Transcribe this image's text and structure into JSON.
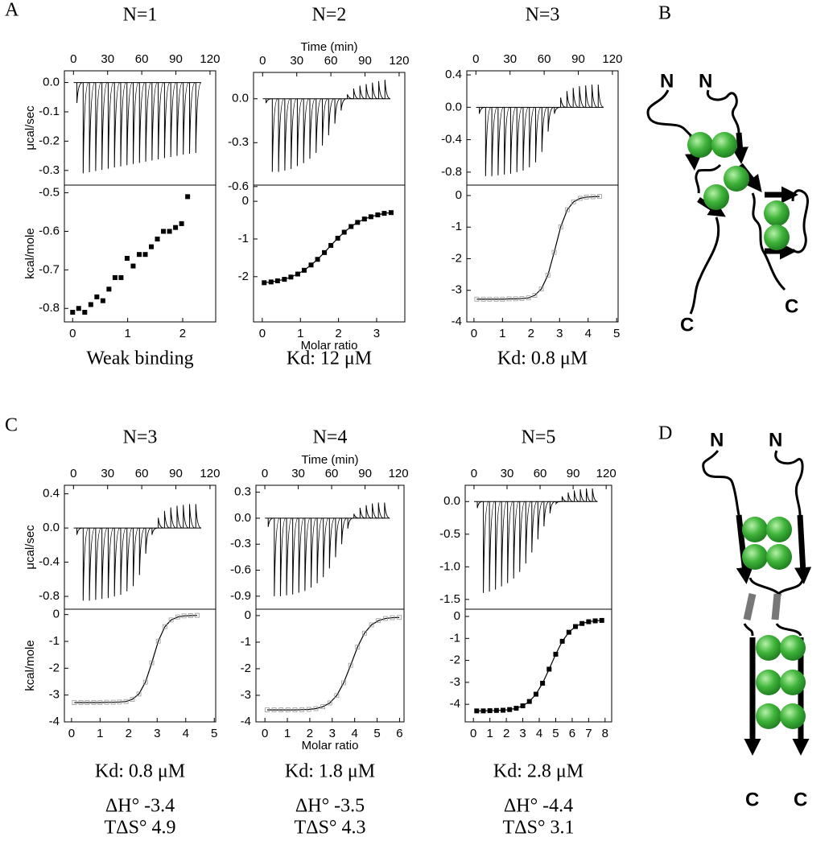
{
  "panel_labels": [
    "A",
    "B",
    "C",
    "D"
  ],
  "diagrams": [
    {
      "labels": [
        "N",
        "N",
        "C",
        "C"
      ]
    },
    {
      "labels": [
        "N",
        "N",
        "C",
        "C"
      ]
    }
  ],
  "chart_data": [
    {
      "type": "thermogram",
      "title": "N=1",
      "ylabel": "μcal/sec",
      "xlim": [
        -8,
        125
      ],
      "xticks": [
        0,
        30,
        60,
        90,
        120
      ],
      "ylim": [
        -0.35,
        0.04
      ],
      "yticks": [
        {
          "value": 0,
          "label": "0.0"
        },
        -0.1,
        -0.2,
        -0.3
      ],
      "color": "#000000",
      "x": [
        3,
        8.5,
        14,
        19.5,
        25,
        30.5,
        36,
        41.5,
        47,
        52.5,
        58,
        63.5,
        69,
        74.5,
        80,
        85.5,
        91,
        96.5,
        102,
        107.5
      ],
      "values": [
        -0.07,
        -0.31,
        -0.306,
        -0.302,
        -0.298,
        -0.294,
        -0.29,
        -0.286,
        -0.282,
        -0.278,
        -0.274,
        -0.27,
        -0.266,
        -0.262,
        -0.258,
        -0.254,
        -0.25,
        -0.246,
        -0.243,
        -0.24
      ]
    },
    {
      "type": "isotherm",
      "ylabel": "kcal/mole",
      "xlim": [
        -0.15,
        2.6
      ],
      "xticks": [
        0,
        1,
        2
      ],
      "ylim": [
        -0.835,
        -0.48
      ],
      "yticks": [
        -0.5,
        -0.6,
        -0.7,
        -0.8
      ],
      "marker": "square",
      "connect": false,
      "color": "#000000",
      "line_color": "#000000",
      "x": [
        0,
        0.11,
        0.22,
        0.33,
        0.44,
        0.55,
        0.66,
        0.77,
        0.88,
        0.99,
        1.1,
        1.21,
        1.32,
        1.43,
        1.54,
        1.65,
        1.76,
        1.87,
        1.98,
        2.09
      ],
      "values": [
        -0.81,
        -0.8,
        -0.81,
        -0.79,
        -0.77,
        -0.78,
        -0.75,
        -0.72,
        -0.72,
        -0.67,
        -0.69,
        -0.66,
        -0.66,
        -0.64,
        -0.62,
        -0.6,
        -0.6,
        -0.59,
        -0.58,
        -0.51
      ],
      "annotations": [
        "Weak binding"
      ]
    },
    {
      "type": "thermogram",
      "title": "N=2",
      "xlabel": "Time (min)",
      "xlim": [
        -8,
        125
      ],
      "xticks": [
        0,
        30,
        60,
        90,
        120
      ],
      "ylim": [
        -0.59,
        0.18
      ],
      "yticks": [
        {
          "value": 0,
          "label": "0.0"
        },
        -0.3,
        -0.6
      ],
      "color": "#000000",
      "x": [
        3,
        8.5,
        14,
        19.5,
        25,
        30.5,
        36,
        41.5,
        47,
        52.5,
        58,
        63.5,
        69,
        74.5,
        80,
        85.5,
        91,
        96.5,
        102,
        107.5
      ],
      "values": [
        -0.03,
        -0.5,
        -0.5,
        -0.49,
        -0.48,
        -0.46,
        -0.44,
        -0.41,
        -0.37,
        -0.32,
        -0.25,
        -0.17,
        -0.08,
        0.03,
        0.07,
        0.09,
        0.1,
        0.11,
        0.12,
        0.13
      ]
    },
    {
      "type": "isotherm",
      "xlabel": "Molar ratio",
      "xlim": [
        -0.23,
        3.74
      ],
      "xticks": [
        0,
        1,
        2,
        3
      ],
      "ylim": [
        -3.2,
        0.43
      ],
      "yticks": [
        0,
        -1,
        -2
      ],
      "marker": "square",
      "connect": true,
      "color": "#000000",
      "line_color": "#000000",
      "x": [
        0.05,
        0.23,
        0.4,
        0.58,
        0.75,
        0.93,
        1.1,
        1.28,
        1.45,
        1.63,
        1.8,
        1.98,
        2.15,
        2.33,
        2.5,
        2.68,
        2.85,
        3.03,
        3.2,
        3.38
      ],
      "values": [
        -2.16,
        -2.14,
        -2.11,
        -2.07,
        -2.01,
        -1.93,
        -1.83,
        -1.69,
        -1.54,
        -1.36,
        -1.17,
        -0.98,
        -0.82,
        -0.67,
        -0.56,
        -0.47,
        -0.41,
        -0.36,
        -0.32,
        -0.3
      ],
      "annotations": [
        "Kd: 12 μM"
      ]
    },
    {
      "type": "thermogram",
      "title": "N=3",
      "xlim": [
        -8,
        125
      ],
      "xticks": [
        0,
        30,
        60,
        90,
        120
      ],
      "ylim": [
        -0.96,
        0.45
      ],
      "yticks": [
        0.4,
        {
          "value": 0,
          "label": "0.0"
        },
        -0.4,
        -0.8
      ],
      "color": "#000000",
      "x": [
        3,
        8.5,
        14,
        19.5,
        25,
        30.5,
        36,
        41.5,
        47,
        52.5,
        58,
        63.5,
        69,
        74.5,
        80,
        85.5,
        91,
        96.5,
        102,
        107.5
      ],
      "values": [
        -0.08,
        -0.85,
        -0.85,
        -0.84,
        -0.83,
        -0.82,
        -0.8,
        -0.78,
        -0.74,
        -0.68,
        -0.55,
        -0.3,
        -0.08,
        0.12,
        0.2,
        0.24,
        0.26,
        0.27,
        0.28,
        0.28
      ]
    },
    {
      "type": "isotherm",
      "xlim": [
        -0.25,
        5.05
      ],
      "xticks": [
        0,
        1,
        2,
        3,
        4,
        5
      ],
      "ylim": [
        -4,
        0.33
      ],
      "yticks": [
        0,
        -1,
        -2,
        -3,
        -4
      ],
      "marker": "open",
      "connect": true,
      "color": "#999999",
      "line_color": "#000000",
      "x": [
        0.1,
        0.33,
        0.55,
        0.78,
        1.0,
        1.23,
        1.46,
        1.68,
        1.91,
        2.13,
        2.36,
        2.59,
        2.81,
        3.04,
        3.27,
        3.49,
        3.72,
        3.94,
        4.17,
        4.4
      ],
      "values": [
        -3.28,
        -3.28,
        -3.28,
        -3.28,
        -3.28,
        -3.27,
        -3.27,
        -3.26,
        -3.24,
        -3.16,
        -2.96,
        -2.52,
        -1.8,
        -0.99,
        -0.45,
        -0.2,
        -0.09,
        -0.05,
        -0.04,
        -0.03
      ],
      "annotations": [
        "Kd: 0.8 μM"
      ]
    },
    {
      "type": "thermogram",
      "title": "N=3",
      "ylabel": "μcal/sec",
      "xlim": [
        -8,
        125
      ],
      "xticks": [
        0,
        30,
        60,
        90,
        120
      ],
      "ylim": [
        -0.95,
        0.5
      ],
      "yticks": [
        0.4,
        {
          "value": 0,
          "label": "0.0"
        },
        -0.4,
        -0.8
      ],
      "color": "#000000",
      "x": [
        3,
        8.5,
        14,
        19.5,
        25,
        30.5,
        36,
        41.5,
        47,
        52.5,
        58,
        63.5,
        69,
        74.5,
        80,
        85.5,
        91,
        96.5,
        102,
        107.5
      ],
      "values": [
        -0.08,
        -0.85,
        -0.85,
        -0.84,
        -0.83,
        -0.82,
        -0.8,
        -0.78,
        -0.74,
        -0.68,
        -0.55,
        -0.3,
        -0.08,
        0.12,
        0.2,
        0.24,
        0.26,
        0.27,
        0.28,
        0.28
      ]
    },
    {
      "type": "isotherm",
      "ylabel": "kcal/mole",
      "xlim": [
        -0.25,
        5.05
      ],
      "xticks": [
        0,
        1,
        2,
        3,
        4,
        5
      ],
      "ylim": [
        -4,
        0.2
      ],
      "yticks": [
        0,
        -1,
        -2,
        -3,
        -4
      ],
      "marker": "open",
      "connect": true,
      "color": "#999999",
      "line_color": "#000000",
      "x": [
        0.1,
        0.33,
        0.55,
        0.78,
        1.0,
        1.23,
        1.46,
        1.68,
        1.91,
        2.13,
        2.36,
        2.59,
        2.81,
        3.04,
        3.27,
        3.49,
        3.72,
        3.94,
        4.17,
        4.4
      ],
      "values": [
        -3.28,
        -3.28,
        -3.28,
        -3.28,
        -3.28,
        -3.27,
        -3.27,
        -3.26,
        -3.24,
        -3.16,
        -2.96,
        -2.52,
        -1.8,
        -0.99,
        -0.45,
        -0.2,
        -0.09,
        -0.05,
        -0.04,
        -0.03
      ],
      "annotations": [
        "Kd: 0.8 μM",
        "ΔH° -3.4",
        "TΔS° 4.9"
      ]
    },
    {
      "type": "thermogram",
      "title": "N=4",
      "xlabel": "Time (min)",
      "xlim": [
        -8,
        125
      ],
      "xticks": [
        0,
        30,
        60,
        90,
        120
      ],
      "ylim": [
        -1.05,
        0.38
      ],
      "yticks": [
        0.3,
        {
          "value": 0,
          "label": "0.0"
        },
        -0.3,
        -0.6,
        -0.9
      ],
      "color": "#000000",
      "x": [
        3,
        8.5,
        14,
        19.5,
        25,
        30.5,
        36,
        41.5,
        47,
        52.5,
        58,
        63.5,
        69,
        74.5,
        80,
        85.5,
        91,
        96.5,
        102,
        107.5
      ],
      "values": [
        -0.1,
        -0.9,
        -0.9,
        -0.89,
        -0.88,
        -0.86,
        -0.84,
        -0.8,
        -0.75,
        -0.68,
        -0.58,
        -0.45,
        -0.3,
        -0.12,
        0.05,
        0.12,
        0.15,
        0.17,
        0.18,
        0.18
      ]
    },
    {
      "type": "isotherm",
      "xlabel": "Molar ratio",
      "xlim": [
        -0.4,
        6.2
      ],
      "xticks": [
        0,
        1,
        2,
        3,
        4,
        5,
        6
      ],
      "ylim": [
        -4,
        0.24
      ],
      "yticks": [
        0,
        -1,
        -2,
        -3,
        -4
      ],
      "marker": "open",
      "connect": true,
      "color": "#999999",
      "line_color": "#000000",
      "x": [
        0.1,
        0.41,
        0.72,
        1.03,
        1.34,
        1.65,
        1.96,
        2.27,
        2.58,
        2.89,
        3.2,
        3.51,
        3.82,
        4.13,
        4.44,
        4.75,
        5.06,
        5.37,
        5.68,
        5.99
      ],
      "values": [
        -3.55,
        -3.55,
        -3.55,
        -3.55,
        -3.55,
        -3.54,
        -3.53,
        -3.5,
        -3.43,
        -3.29,
        -3.01,
        -2.53,
        -1.87,
        -1.18,
        -0.66,
        -0.35,
        -0.19,
        -0.11,
        -0.08,
        -0.07
      ],
      "annotations": [
        "Kd: 1.8 μM",
        "ΔH° -3.5",
        "TΔS° 4.3"
      ]
    },
    {
      "type": "thermogram",
      "title": "N=5",
      "xlim": [
        -8,
        125
      ],
      "xticks": [
        0,
        30,
        60,
        90,
        120
      ],
      "ylim": [
        -1.65,
        0.25
      ],
      "yticks": [
        {
          "value": 0,
          "label": "0.0"
        },
        -0.5,
        {
          "value": -1,
          "label": "-1.0"
        },
        -1.5
      ],
      "color": "#000000",
      "x": [
        3,
        8.5,
        14,
        19.5,
        25,
        30.5,
        36,
        41.5,
        47,
        52.5,
        58,
        63.5,
        69,
        74.5,
        80,
        85.5,
        91,
        96.5,
        102,
        107.5
      ],
      "values": [
        -0.1,
        -1.4,
        -1.38,
        -1.35,
        -1.3,
        -1.25,
        -1.18,
        -1.08,
        -0.95,
        -0.78,
        -0.58,
        -0.38,
        -0.18,
        -0.03,
        0.08,
        0.14,
        0.17,
        0.19,
        0.2,
        0.2
      ]
    },
    {
      "type": "isotherm",
      "xlim": [
        -0.5,
        8.4
      ],
      "xticks": [
        0,
        1,
        2,
        3,
        4,
        5,
        6,
        7,
        8
      ],
      "ylim": [
        -4.8,
        0.33
      ],
      "yticks": [
        0,
        -1,
        -2,
        -3,
        -4
      ],
      "marker": "square",
      "connect": true,
      "color": "#000000",
      "line_color": "#000000",
      "x": [
        0.2,
        0.6,
        1.0,
        1.4,
        1.8,
        2.2,
        2.6,
        3.0,
        3.4,
        3.8,
        4.2,
        4.6,
        5.0,
        5.4,
        5.8,
        6.2,
        6.6,
        7.0,
        7.4,
        7.8
      ],
      "values": [
        -4.3,
        -4.3,
        -4.29,
        -4.28,
        -4.27,
        -4.24,
        -4.18,
        -4.07,
        -3.87,
        -3.54,
        -3.04,
        -2.4,
        -1.72,
        -1.13,
        -0.72,
        -0.46,
        -0.32,
        -0.24,
        -0.2,
        -0.18
      ],
      "annotations": [
        "Kd: 2.8 μM",
        "ΔH° -4.4",
        "TΔS° 3.1"
      ]
    }
  ]
}
